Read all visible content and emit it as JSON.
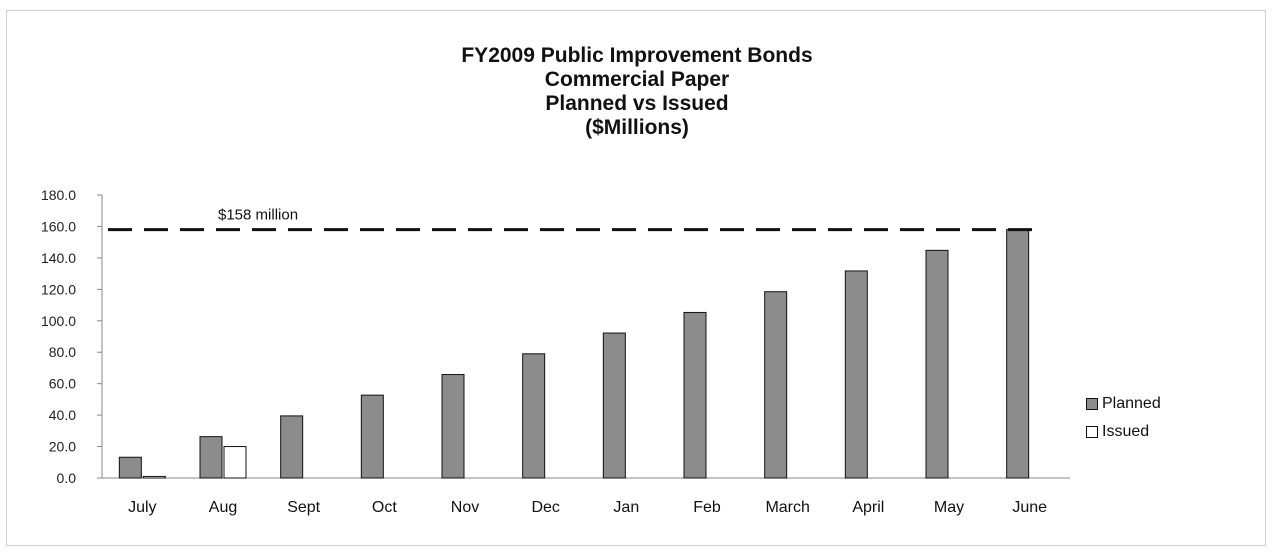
{
  "chart_data": {
    "type": "bar",
    "title_lines": [
      "FY2009 Public Improvement Bonds",
      "Commercial Paper",
      "Planned vs Issued",
      "($Millions)"
    ],
    "categories": [
      "July",
      "Aug",
      "Sept",
      "Oct",
      "Nov",
      "Dec",
      "Jan",
      "Feb",
      "March",
      "April",
      "May",
      "June"
    ],
    "series": [
      {
        "name": "Planned",
        "color": "#8c8c8c",
        "values": [
          13.2,
          26.3,
          39.5,
          52.7,
          65.8,
          79.0,
          92.2,
          105.3,
          118.5,
          131.7,
          144.8,
          158.0
        ]
      },
      {
        "name": "Issued",
        "color": "#ffffff",
        "values": [
          1.0,
          20.0,
          null,
          null,
          null,
          null,
          null,
          null,
          null,
          null,
          null,
          null
        ]
      }
    ],
    "yticks": [
      "0.0",
      "20.0",
      "40.0",
      "60.0",
      "80.0",
      "100.0",
      "120.0",
      "140.0",
      "160.0",
      "180.0"
    ],
    "ylim": [
      0,
      180
    ],
    "reference_line": {
      "value": 158,
      "label": "$158 million",
      "style": "dashed"
    },
    "grid": false,
    "legend_position": "right"
  }
}
